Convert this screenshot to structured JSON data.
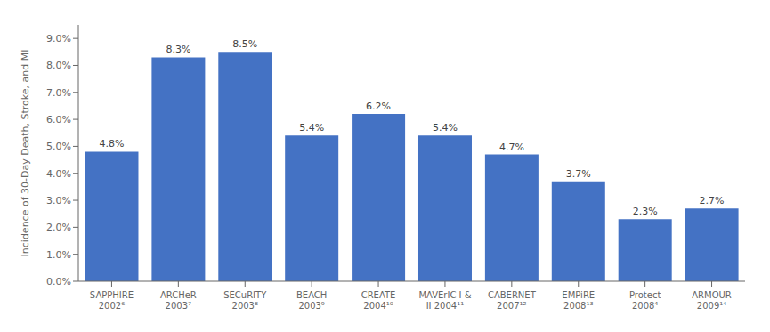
{
  "chart_data": {
    "type": "bar",
    "categories": [
      "SAPPHIRE\n2002⁶",
      "ARCHeR\n2003⁷",
      "SECuRITY\n2003⁸",
      "BEACH\n2003⁹",
      "CREATE\n2004¹⁰",
      "MAVErIC I &\nII 2004¹¹",
      "CABERNET\n2007¹²",
      "EMPiRE\n2008¹³",
      "Protect\n2008⁴",
      "ARMOUR\n2009¹⁴"
    ],
    "values": [
      4.8,
      8.3,
      8.5,
      5.4,
      6.2,
      5.4,
      4.7,
      3.7,
      2.3,
      2.7
    ],
    "value_labels": [
      "4.8%",
      "8.3%",
      "8.5%",
      "5.4%",
      "6.2%",
      "5.4%",
      "4.7%",
      "3.7%",
      "2.3%",
      "2.7%"
    ],
    "data_labels": true,
    "color": "#4472C4",
    "ylabel": "Incidence of 30-Day Death, Stroke, and MI",
    "ylim": [
      0,
      9.5
    ],
    "yticks": [
      {
        "value": 0.0,
        "label": "0.0%"
      },
      {
        "value": 1.0,
        "label": "1.0%"
      },
      {
        "value": 2.0,
        "label": "2.0%"
      },
      {
        "value": 3.0,
        "label": "3.0%"
      },
      {
        "value": 4.0,
        "label": "4.0%"
      },
      {
        "value": 5.0,
        "label": "5.0%"
      },
      {
        "value": 6.0,
        "label": "6.0%"
      },
      {
        "value": 7.0,
        "label": "7.0%"
      },
      {
        "value": 8.0,
        "label": "8.0%"
      },
      {
        "value": 9.0,
        "label": "9.0%"
      }
    ],
    "grid": false
  }
}
